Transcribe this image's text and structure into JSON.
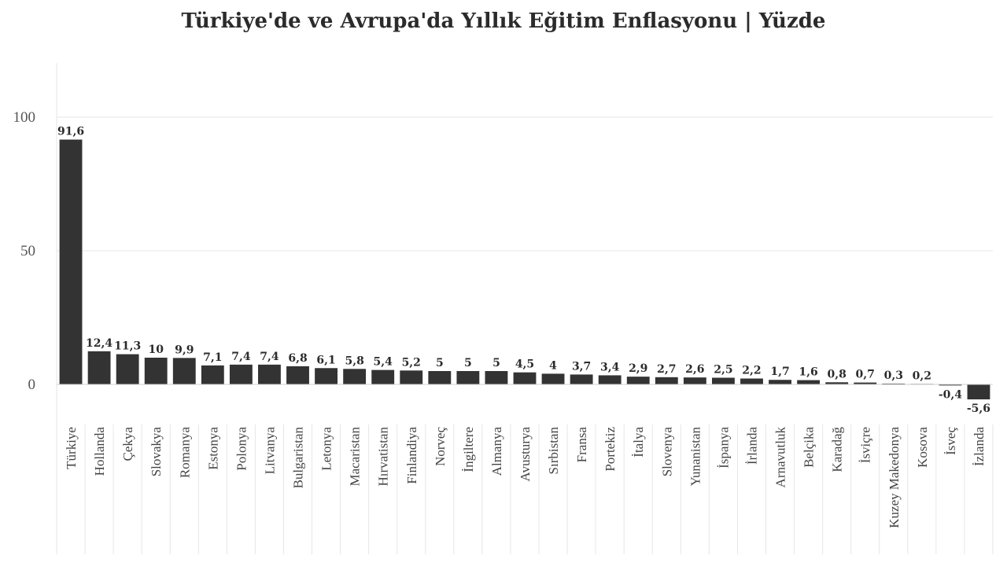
{
  "chart_data": {
    "type": "bar",
    "title": "Türkiye'de ve Avrupa'da Yıllık Eğitim Enflasyonu | Yüzde",
    "xlabel": "",
    "ylabel": "",
    "categories": [
      "Türkiye",
      "Hollanda",
      "Çekya",
      "Slovakya",
      "Romanya",
      "Estonya",
      "Polonya",
      "Litvanya",
      "Bulgaristan",
      "Letonya",
      "Macaristan",
      "Hırvatistan",
      "Finlandiya",
      "Norveç",
      "İngiltere",
      "Almanya",
      "Avusturya",
      "Sırbistan",
      "Fransa",
      "Portekiz",
      "İtalya",
      "Slovenya",
      "Yunanistan",
      "İspanya",
      "İrlanda",
      "Arnavutluk",
      "Belçika",
      "Karadağ",
      "İsviçre",
      "Kuzey Makedonya",
      "Kosova",
      "İsveç",
      "İzlanda"
    ],
    "values": [
      91.6,
      12.4,
      11.3,
      10,
      9.9,
      7.1,
      7.4,
      7.4,
      6.8,
      6.1,
      5.8,
      5.4,
      5.2,
      5,
      5,
      5,
      4.5,
      4,
      3.7,
      3.4,
      2.9,
      2.7,
      2.6,
      2.5,
      2.2,
      1.7,
      1.6,
      0.8,
      0.7,
      0.3,
      0.2,
      -0.4,
      -5.6
    ],
    "value_labels": [
      "91,6",
      "12,4",
      "11,3",
      "10",
      "9,9",
      "7,1",
      "7,4",
      "7,4",
      "6,8",
      "6,1",
      "5,8",
      "5,4",
      "5,2",
      "5",
      "5",
      "5",
      "4,5",
      "4",
      "3,7",
      "3,4",
      "2,9",
      "2,7",
      "2,6",
      "2,5",
      "2,2",
      "1,7",
      "1,6",
      "0,8",
      "0,7",
      "0,3",
      "0,2",
      "-0,4",
      "-5,6"
    ],
    "yticks": [
      0,
      50,
      100
    ],
    "ylim": [
      -14,
      120
    ],
    "grid": true,
    "colors": {
      "bar": "#333333",
      "grid": "#e6e6e6",
      "axis": "#dddddd"
    }
  }
}
